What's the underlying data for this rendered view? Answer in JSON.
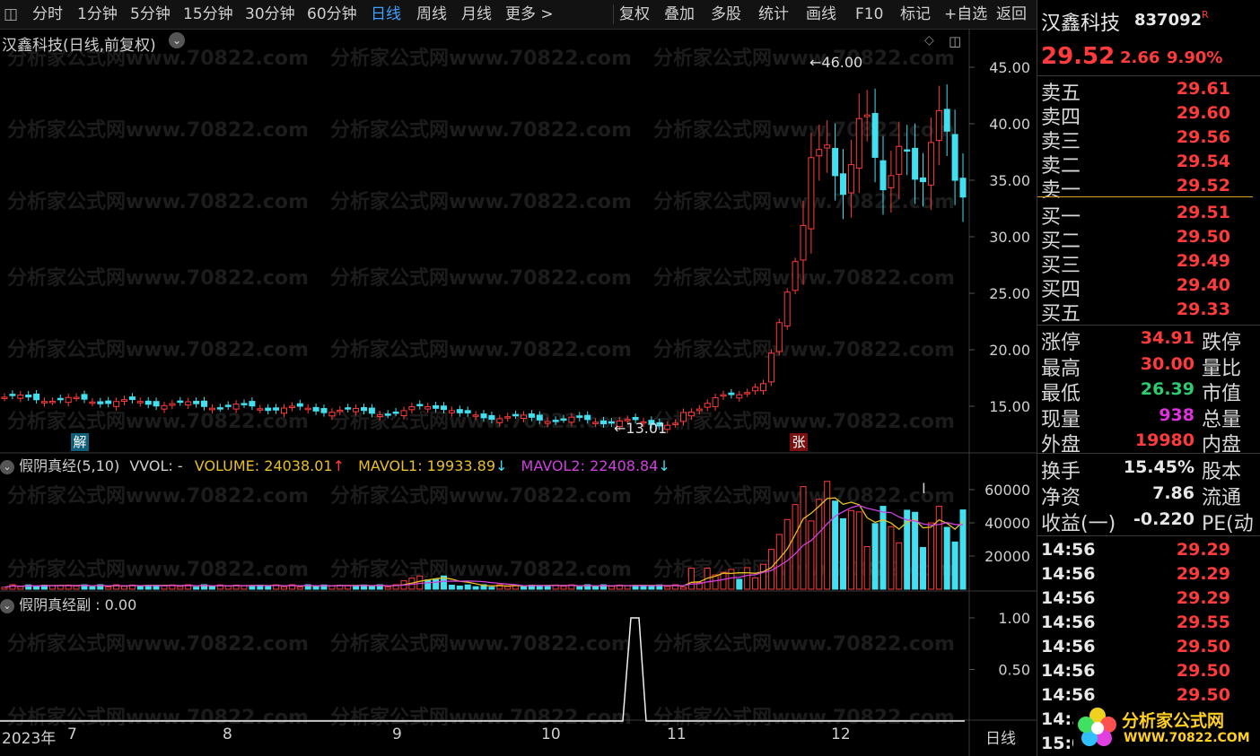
{
  "toolbar": {
    "items": [
      "分时",
      "1分钟",
      "5分钟",
      "15分钟",
      "30分钟",
      "60分钟",
      "日线",
      "周线",
      "月线",
      "更多 >"
    ],
    "active": "日线",
    "right_items": [
      "复权",
      "叠加",
      "多股",
      "统计",
      "画线",
      "F10",
      "标记",
      "+自选",
      "返回"
    ]
  },
  "chart": {
    "title": "汉鑫科技(日线,前复权)",
    "y_ticks": [
      "45.00",
      "40.00",
      "35.00",
      "30.00",
      "25.00",
      "20.00",
      "15.00"
    ],
    "high_label": "46.00",
    "low_label": "13.01",
    "marker_jie": "解",
    "marker_zhang": "张",
    "watermark": "分析家公式网www.70822.com"
  },
  "volume": {
    "indicator": "假阴真经(5,10)",
    "vvol": "VVOL: -",
    "volume": "VOLUME: 24038.01",
    "mavol1": "MAVOL1: 19933.89",
    "mavol2": "MAVOL2: 22408.84",
    "y_ticks": [
      "60000",
      "40000",
      "20000"
    ]
  },
  "sub": {
    "title": "假阴真经副 : 0.00",
    "y_ticks": [
      "1.00",
      "0.50"
    ]
  },
  "xaxis": {
    "labels": [
      "2023年",
      "7",
      "8",
      "9",
      "10",
      "11",
      "12"
    ],
    "period": "日线"
  },
  "quote": {
    "name": "汉鑫科技",
    "code": "837092",
    "flag": "R",
    "price": "29.52",
    "change": "2.66",
    "pct": "9.90%",
    "asks": [
      {
        "label": "卖五",
        "price": "29.61"
      },
      {
        "label": "卖四",
        "price": "29.60"
      },
      {
        "label": "卖三",
        "price": "29.56"
      },
      {
        "label": "卖二",
        "price": "29.54"
      },
      {
        "label": "卖一",
        "price": "29.52"
      }
    ],
    "bids": [
      {
        "label": "买一",
        "price": "29.51"
      },
      {
        "label": "买二",
        "price": "29.50"
      },
      {
        "label": "买三",
        "price": "29.49"
      },
      {
        "label": "买四",
        "price": "29.40"
      },
      {
        "label": "买五",
        "price": "29.33"
      }
    ],
    "stats": [
      {
        "label": "涨停",
        "value": "34.91",
        "label2": "跌停",
        "color": "red"
      },
      {
        "label": "最高",
        "value": "30.00",
        "label2": "量比",
        "color": "red"
      },
      {
        "label": "最低",
        "value": "26.39",
        "label2": "市值",
        "color": "green"
      },
      {
        "label": "现量",
        "value": "938",
        "label2": "总量",
        "color": "pink"
      },
      {
        "label": "外盘",
        "value": "19980",
        "label2": "内盘",
        "color": "red"
      }
    ],
    "stats2": [
      {
        "label": "换手",
        "value": "15.45%",
        "label2": "股本"
      },
      {
        "label": "净资",
        "value": "7.86",
        "label2": "流通"
      },
      {
        "label": "收益(一)",
        "value": "-0.220",
        "label2": "PE(动"
      }
    ],
    "ticks": [
      {
        "time": "14:56",
        "price": "29.29"
      },
      {
        "time": "14:56",
        "price": "29.29"
      },
      {
        "time": "14:56",
        "price": "29.29"
      },
      {
        "time": "14:56",
        "price": "29.55"
      },
      {
        "time": "14:56",
        "price": "29.50"
      },
      {
        "time": "14:56",
        "price": "29.50"
      },
      {
        "time": "14:56",
        "price": "29.50"
      },
      {
        "time": "14:5",
        "price": ""
      },
      {
        "time": "15:0",
        "price": ""
      }
    ]
  },
  "logo": {
    "name": "分析家公式网",
    "url": "WWW.70822.COM"
  }
}
